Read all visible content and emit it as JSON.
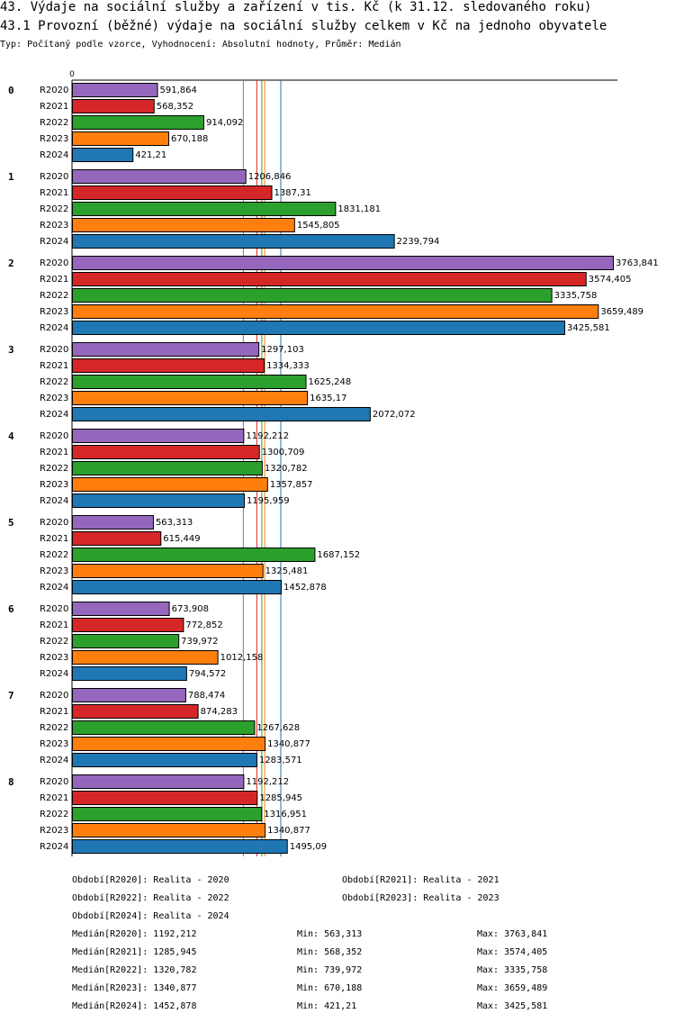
{
  "header": {
    "title": "43. Výdaje na sociální služby a zařízení v tis. Kč (k 31.12. sledovaného roku)",
    "subtitle": "43.1 Provozní (běžné) výdaje na sociální služby celkem v Kč na jednoho obyvatele",
    "meta": "Typ: Počítaný podle vzorce, Vyhodnocení: Absolutní hodnoty, Průměr: Medián"
  },
  "chart_data": {
    "type": "bar",
    "orientation": "horizontal",
    "axis_zero_label": "0",
    "xlim": [
      0,
      3763.841
    ],
    "categories": [
      "0",
      "1",
      "2",
      "3",
      "4",
      "5",
      "6",
      "7",
      "8"
    ],
    "series": [
      {
        "name": "R2020",
        "color": "#9467bd",
        "values": [
          591.864,
          1206.846,
          3763.841,
          1297.103,
          1192.212,
          563.313,
          673.908,
          788.474,
          1192.212
        ],
        "labels": [
          "591,864",
          "1206,846",
          "3763,841",
          "1297,103",
          "1192,212",
          "563,313",
          "673,908",
          "788,474",
          "1192,212"
        ]
      },
      {
        "name": "R2021",
        "color": "#d62728",
        "values": [
          568.352,
          1387.31,
          3574.405,
          1334.333,
          1300.709,
          615.449,
          772.852,
          874.283,
          1285.945
        ],
        "labels": [
          "568,352",
          "1387,31",
          "3574,405",
          "1334,333",
          "1300,709",
          "615,449",
          "772,852",
          "874,283",
          "1285,945"
        ]
      },
      {
        "name": "R2022",
        "color": "#2ca02c",
        "values": [
          914.092,
          1831.181,
          3335.758,
          1625.248,
          1320.782,
          1687.152,
          739.972,
          1267.628,
          1316.951
        ],
        "labels": [
          "914,092",
          "1831,181",
          "3335,758",
          "1625,248",
          "1320,782",
          "1687,152",
          "739,972",
          "1267,628",
          "1316,951"
        ]
      },
      {
        "name": "R2023",
        "color": "#ff7f0e",
        "values": [
          670.188,
          1545.805,
          3659.489,
          1635.17,
          1357.857,
          1325.481,
          1012.158,
          1340.877,
          1340.877
        ],
        "labels": [
          "670,188",
          "1545,805",
          "3659,489",
          "1635,17",
          "1357,857",
          "1325,481",
          "1012,158",
          "1340,877",
          "1340,877"
        ]
      },
      {
        "name": "R2024",
        "color": "#1f77b4",
        "values": [
          421.21,
          2239.794,
          3425.581,
          2072.072,
          1195.959,
          1452.878,
          794.572,
          1283.571,
          1495.09
        ],
        "labels": [
          "421,21",
          "2239,794",
          "3425,581",
          "2072,072",
          "1195,959",
          "1452,878",
          "794,572",
          "1283,571",
          "1495,09"
        ]
      }
    ],
    "medians": [
      1192.212,
      1285.945,
      1320.782,
      1340.877,
      1452.878
    ]
  },
  "legend": {
    "periods": [
      "Období[R2020]: Realita - 2020",
      "Období[R2021]: Realita - 2021",
      "Období[R2022]: Realita - 2022",
      "Období[R2023]: Realita - 2023",
      "Období[R2024]: Realita - 2024"
    ],
    "stats": [
      {
        "median": "Medián[R2020]: 1192,212",
        "min": "Min: 563,313",
        "max": "Max: 3763,841"
      },
      {
        "median": "Medián[R2021]: 1285,945",
        "min": "Min: 568,352",
        "max": "Max: 3574,405"
      },
      {
        "median": "Medián[R2022]: 1320,782",
        "min": "Min: 739,972",
        "max": "Max: 3335,758"
      },
      {
        "median": "Medián[R2023]: 1340,877",
        "min": "Min: 670,188",
        "max": "Max: 3659,489"
      },
      {
        "median": "Medián[R2024]: 1452,878",
        "min": "Min: 421,21",
        "max": "Max: 3425,581"
      }
    ]
  }
}
